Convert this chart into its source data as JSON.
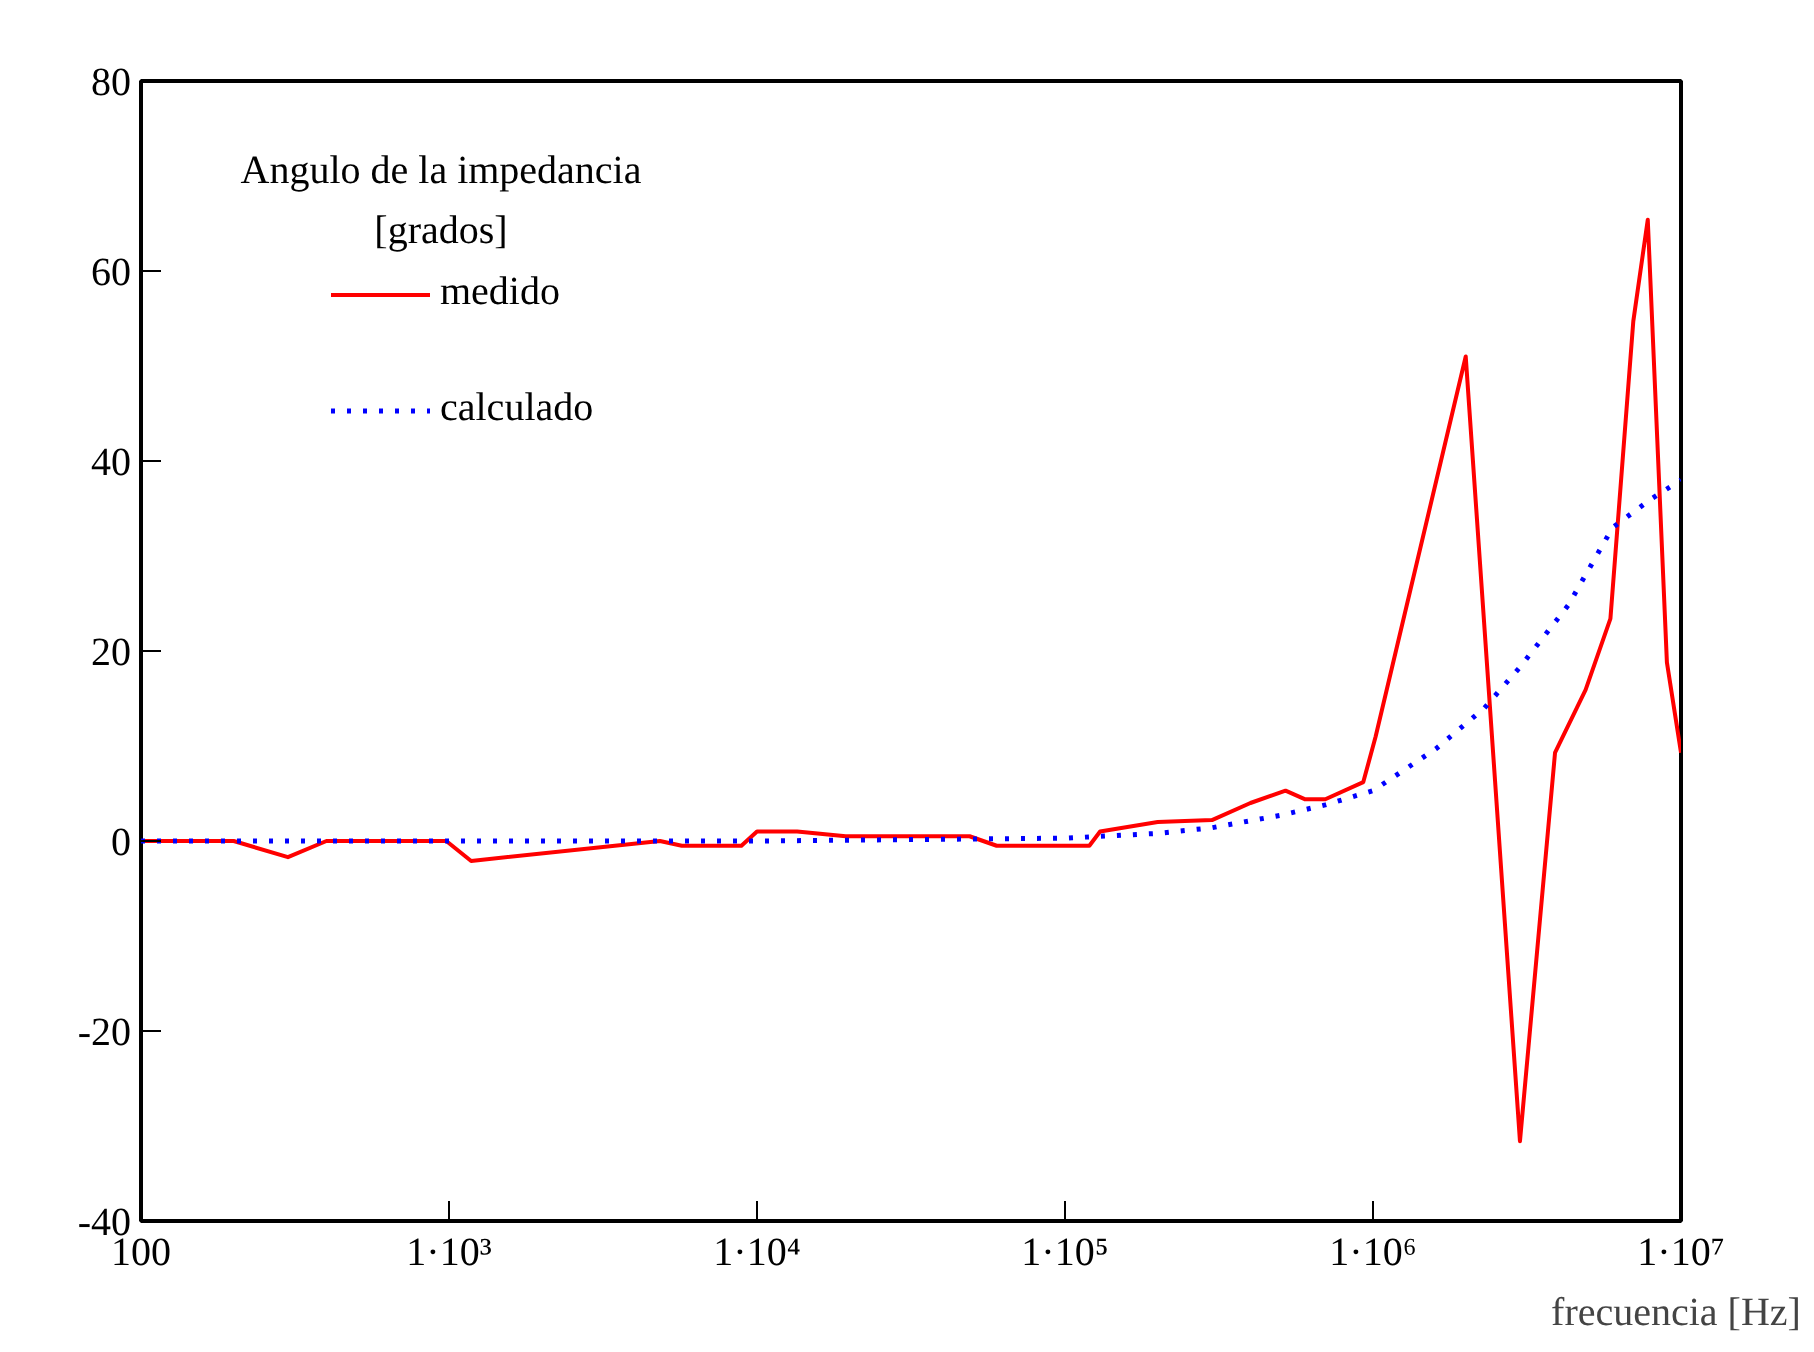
{
  "chart_data": {
    "type": "line",
    "xlabel": "frecuencia  [Hz]",
    "annotations": [
      "Angulo de la impedancia\n[grados]"
    ],
    "log": "x",
    "grid": false,
    "legend": "top left",
    "marker": "none",
    "xlim": [
      100,
      10000000
    ],
    "xticks": [
      100,
      {
        "value": 1000,
        "label": "1·10³"
      },
      {
        "value": 10000,
        "label": "1·10⁴"
      },
      {
        "value": 100000,
        "label": "1·10⁵"
      },
      {
        "value": 1000000,
        "label": "1·10⁶"
      },
      {
        "value": 10000000,
        "label": "1·10⁷"
      }
    ],
    "ylim": [
      -40,
      80
    ],
    "yticks": [
      -40,
      -20,
      0,
      20,
      40,
      60,
      80
    ],
    "series": [
      {
        "name": "medido",
        "color": "#ff0000",
        "line_style": "solid",
        "x": [
          100,
          200,
          300,
          400,
          850,
          980,
          1180,
          4840,
          5700,
          8900,
          10000,
          13500,
          19400,
          49000,
          60000,
          120000,
          130000,
          200000,
          300000,
          400000,
          520000,
          600000,
          700000,
          930000,
          1020000,
          2000000,
          3000000,
          3900000,
          4900000,
          5900000,
          7000000,
          7800000,
          9000000,
          10000000
        ],
        "values": [
          0,
          0,
          -1.7,
          0,
          0,
          0,
          -2.1,
          0,
          -0.5,
          -0.5,
          1,
          1,
          0.5,
          0.5,
          -0.5,
          -0.5,
          1,
          2,
          2.2,
          4,
          5.3,
          4.4,
          4.4,
          6.2,
          11,
          51,
          -31.6,
          9.3,
          15.9,
          23.4,
          54.7,
          65.4,
          18.8,
          9.3
        ]
      },
      {
        "name": "calculado",
        "color": "#0000ff",
        "line_style": "dotted",
        "x": [
          100,
          10000,
          100000,
          200000,
          300000,
          500000,
          700000,
          1000000,
          1600000,
          2300000,
          3000000,
          4300000,
          6000000,
          8000000,
          10000000
        ],
        "values": [
          0,
          0,
          0.3,
          0.8,
          1.4,
          2.7,
          3.8,
          5.3,
          9.7,
          14,
          18.3,
          24.8,
          33,
          36,
          38
        ]
      }
    ]
  }
}
